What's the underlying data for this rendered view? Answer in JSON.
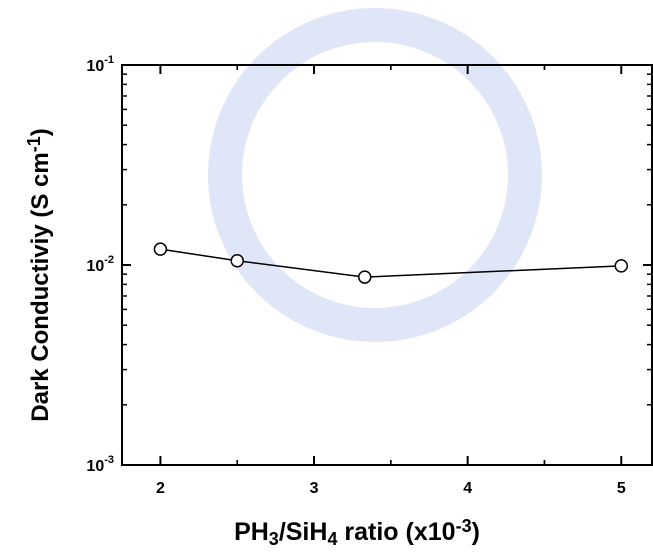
{
  "chart_data": {
    "type": "line",
    "x_label": [
      {
        "text": "PH"
      },
      {
        "text": "3",
        "sub": true
      },
      {
        "text": "/SiH"
      },
      {
        "text": "4",
        "sub": true
      },
      {
        "text": " ratio ("
      },
      {
        "text": "x10"
      },
      {
        "text": "-3",
        "sup": true
      },
      {
        "text": ")"
      }
    ],
    "y_label": [
      {
        "text": "Dark Conductiviy ("
      },
      {
        "text": "S cm"
      },
      {
        "text": "-1",
        "sup": true
      },
      {
        "text": ")"
      }
    ],
    "x": [
      2,
      2.5,
      3.33,
      5
    ],
    "series": [
      {
        "values": [
          0.012,
          0.0105,
          0.0087,
          0.0099
        ],
        "color": "#000000"
      }
    ],
    "xlim": [
      1.75,
      5.2
    ],
    "xticks": [
      2,
      3,
      4,
      5
    ],
    "ylim": [
      0.001,
      0.1
    ],
    "log_y": true,
    "yticks": [
      {
        "value": 0.001,
        "label": "10",
        "exponent": "-3"
      },
      {
        "value": 0.01,
        "label": "10",
        "exponent": "-2"
      },
      {
        "value": 0.1,
        "label": "10",
        "exponent": "-1"
      }
    ],
    "grid": false
  }
}
